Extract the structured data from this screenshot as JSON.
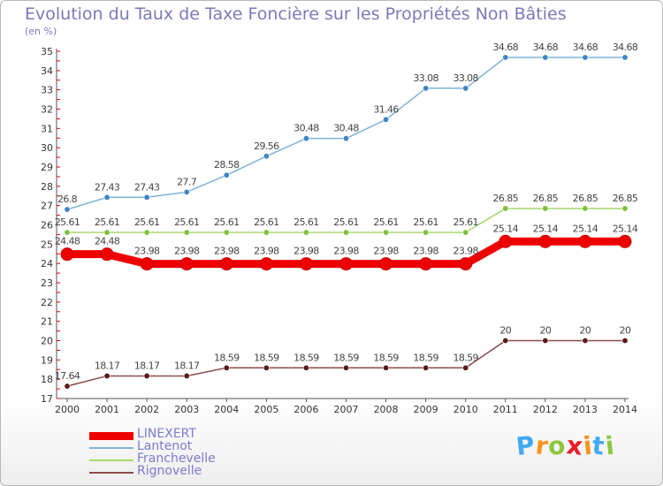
{
  "header": {
    "title": "Evolution du Taux de Taxe Foncière sur les Propriétés Non Bâties",
    "unit": "(en %)"
  },
  "logo": {
    "text": "Proxiti",
    "letters": [
      "P",
      "r",
      "o",
      "x",
      "i",
      "t",
      "i"
    ],
    "letter_colors": [
      "#3fa9f5",
      "#f7941d",
      "#8dc63f",
      "#ed1c24",
      "#f7941d",
      "#3fa9f5",
      "#8dc63f"
    ]
  },
  "chart_data": {
    "type": "line",
    "title": "Evolution du Taux de Taxe Foncière sur les Propriétés Non Bâties",
    "ylabel": "(en %)",
    "xlabel": "",
    "x": [
      "2000",
      "2001",
      "2002",
      "2003",
      "2004",
      "2005",
      "2006",
      "2007",
      "2008",
      "2009",
      "2010",
      "2011",
      "2012",
      "2013",
      "2014"
    ],
    "ylim": [
      17,
      35
    ],
    "yticks": [
      "17",
      "18",
      "19",
      "20",
      "21",
      "22",
      "23",
      "24",
      "25",
      "26",
      "27",
      "28",
      "29",
      "30",
      "31",
      "32",
      "33",
      "34",
      "35"
    ],
    "grid": false,
    "legend_position": "bottom-left",
    "series": [
      {
        "name": "LINEXERT",
        "color": "#ee0000",
        "emphasis": "thick",
        "values": [
          24.48,
          24.48,
          23.98,
          23.98,
          23.98,
          23.98,
          23.98,
          23.98,
          23.98,
          23.98,
          23.98,
          25.14,
          25.14,
          25.14,
          25.14
        ],
        "labels": [
          "24.48",
          "24.48",
          "23.98",
          "23.98",
          "23.98",
          "23.98",
          "23.98",
          "23.98",
          "23.98",
          "23.98",
          "23.98",
          "25.14",
          "25.14",
          "25.14",
          "25.14"
        ]
      },
      {
        "name": "Lantenot",
        "color": "#7eb3d8",
        "marker_color": "#3d85c6",
        "emphasis": "thin",
        "values": [
          26.8,
          27.43,
          27.43,
          27.7,
          28.58,
          29.56,
          30.48,
          30.48,
          31.46,
          33.08,
          33.08,
          34.68,
          34.68,
          34.68,
          34.68
        ],
        "labels": [
          "26.8",
          "27.43",
          "27.43",
          "27.7",
          "28.58",
          "29.56",
          "30.48",
          "30.48",
          "31.46",
          "33.08",
          "33.08",
          "34.68",
          "34.68",
          "34.68",
          "34.68"
        ]
      },
      {
        "name": "Franchevelle",
        "color": "#a6d96a",
        "marker_color": "#7cc13a",
        "emphasis": "thin",
        "values": [
          25.61,
          25.61,
          25.61,
          25.61,
          25.61,
          25.61,
          25.61,
          25.61,
          25.61,
          25.61,
          25.61,
          26.85,
          26.85,
          26.85,
          26.85
        ],
        "labels": [
          "25.61",
          "25.61",
          "25.61",
          "25.61",
          "25.61",
          "25.61",
          "25.61",
          "25.61",
          "25.61",
          "25.61",
          "25.61",
          "26.85",
          "26.85",
          "26.85",
          "26.85"
        ]
      },
      {
        "name": "Rignovelle",
        "color": "#8c4a4a",
        "marker_color": "#5a1a1a",
        "emphasis": "thin",
        "values": [
          17.64,
          18.17,
          18.17,
          18.17,
          18.59,
          18.59,
          18.59,
          18.59,
          18.59,
          18.59,
          18.59,
          20,
          20,
          20,
          20
        ],
        "labels": [
          "17.64",
          "18.17",
          "18.17",
          "18.17",
          "18.59",
          "18.59",
          "18.59",
          "18.59",
          "18.59",
          "18.59",
          "18.59",
          "20",
          "20",
          "20",
          "20"
        ]
      }
    ]
  }
}
